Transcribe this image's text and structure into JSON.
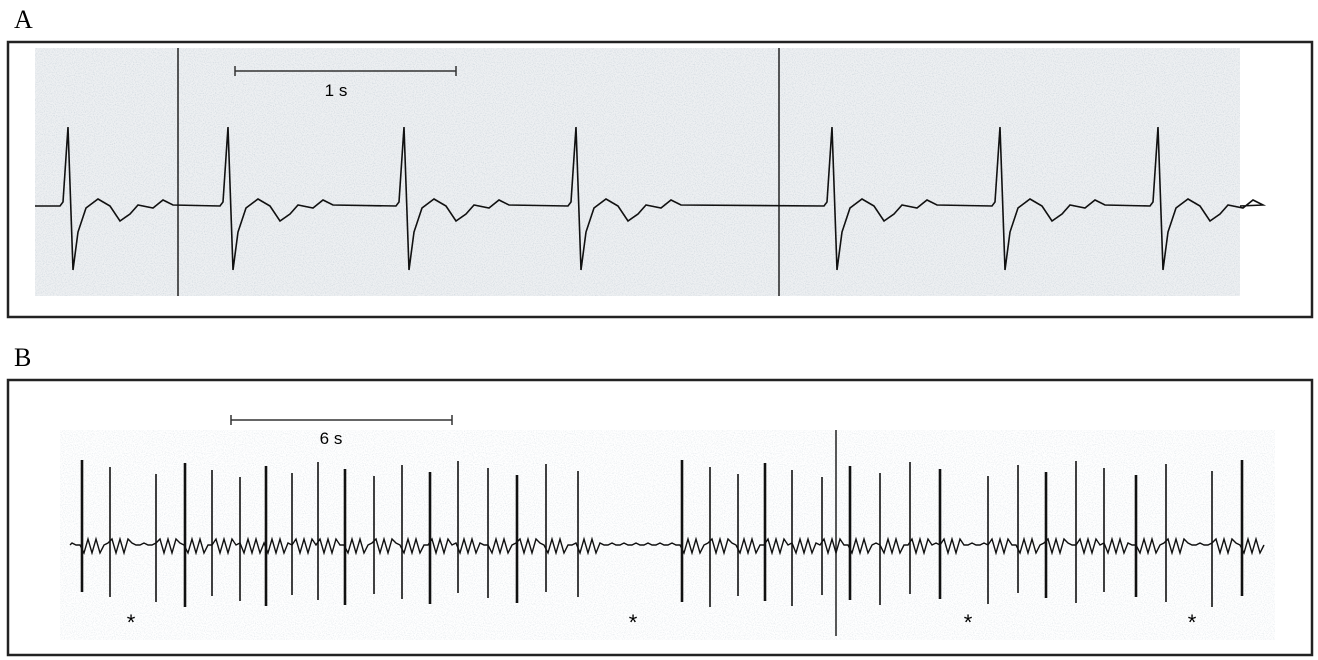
{
  "panels": [
    {
      "label": "A",
      "scale_bar": "1 s"
    },
    {
      "label": "B",
      "scale_bar": "6 s",
      "markers": [
        "*",
        "*",
        "*",
        "*"
      ]
    }
  ]
}
